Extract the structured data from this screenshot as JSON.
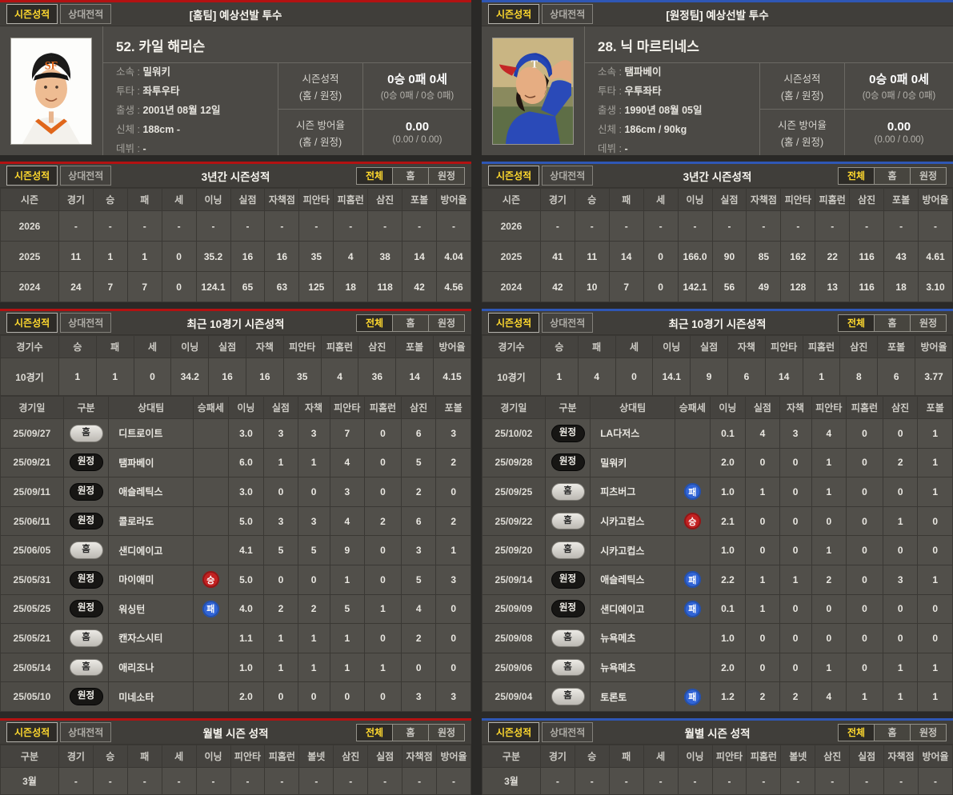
{
  "colors": {
    "home_accent": "#b31212",
    "away_accent": "#2f57b5",
    "active_text": "#ffd92e",
    "win_badge": "#c32222",
    "loss_badge": "#3265d6"
  },
  "panels": [
    {
      "tabs": [
        "시즌성적",
        "상대전적"
      ],
      "filters": [
        "전체",
        "홈",
        "원정"
      ],
      "profile": {
        "title": "[홈팀] 예상선발 투수",
        "name": "52. 카일 해리슨",
        "info": [
          {
            "label": "소속",
            "value": "밀워키"
          },
          {
            "label": "투타",
            "value": "좌투우타"
          },
          {
            "label": "출생",
            "value": "2001년 08월 12일"
          },
          {
            "label": "신체",
            "value": "188cm -"
          },
          {
            "label": "데뷔",
            "value": "-"
          }
        ],
        "records": [
          {
            "label": "시즌성적",
            "sublabel": "(홈 / 원정)",
            "value": "0승 0패 0세",
            "subvalue": "(0승 0패 / 0승 0패)"
          },
          {
            "label": "시즌 방어율",
            "sublabel": "(홈 / 원정)",
            "value": "0.00",
            "subvalue": "(0.00 / 0.00)"
          }
        ]
      },
      "three_year": {
        "title": "3년간 시즌성적",
        "columns": [
          "시즌",
          "경기",
          "승",
          "패",
          "세",
          "이닝",
          "실점",
          "자책점",
          "피안타",
          "피홈런",
          "삼진",
          "포볼",
          "방어율"
        ],
        "rows": [
          [
            "2026",
            "-",
            "-",
            "-",
            "-",
            "-",
            "-",
            "-",
            "-",
            "-",
            "-",
            "-",
            "-"
          ],
          [
            "2025",
            "11",
            "1",
            "1",
            "0",
            "35.2",
            "16",
            "16",
            "35",
            "4",
            "38",
            "14",
            "4.04"
          ],
          [
            "2024",
            "24",
            "7",
            "7",
            "0",
            "124.1",
            "65",
            "63",
            "125",
            "18",
            "118",
            "42",
            "4.56"
          ]
        ]
      },
      "recent": {
        "title": "최근 10경기 시즌성적",
        "summary": {
          "columns": [
            "경기수",
            "승",
            "패",
            "세",
            "이닝",
            "실점",
            "자책",
            "피안타",
            "피홈런",
            "삼진",
            "포볼",
            "방어율"
          ],
          "rows": [
            [
              "10경기",
              "1",
              "1",
              "0",
              "34.2",
              "16",
              "16",
              "35",
              "4",
              "36",
              "14",
              "4.15"
            ]
          ]
        },
        "games": {
          "columns": [
            "경기일",
            "구분",
            "상대팀",
            "승패세",
            "이닝",
            "실점",
            "자책",
            "피안타",
            "피홈런",
            "삼진",
            "포볼"
          ],
          "rows": [
            [
              "25/09/27",
              {
                "pill": "홈",
                "kind": "home"
              },
              "디트로이트",
              "",
              "3.0",
              "3",
              "3",
              "7",
              "0",
              "6",
              "3"
            ],
            [
              "25/09/21",
              {
                "pill": "원정",
                "kind": "away"
              },
              "탬파베이",
              "",
              "6.0",
              "1",
              "1",
              "4",
              "0",
              "5",
              "2"
            ],
            [
              "25/09/11",
              {
                "pill": "원정",
                "kind": "away"
              },
              "애슬레틱스",
              "",
              "3.0",
              "0",
              "0",
              "3",
              "0",
              "2",
              "0"
            ],
            [
              "25/06/11",
              {
                "pill": "원정",
                "kind": "away"
              },
              "콜로라도",
              "",
              "5.0",
              "3",
              "3",
              "4",
              "2",
              "6",
              "2"
            ],
            [
              "25/06/05",
              {
                "pill": "홈",
                "kind": "home"
              },
              "샌디에이고",
              "",
              "4.1",
              "5",
              "5",
              "9",
              "0",
              "3",
              "1"
            ],
            [
              "25/05/31",
              {
                "pill": "원정",
                "kind": "away"
              },
              "마이애미",
              {
                "circle": "승",
                "kind": "win"
              },
              "5.0",
              "0",
              "0",
              "1",
              "0",
              "5",
              "3"
            ],
            [
              "25/05/25",
              {
                "pill": "원정",
                "kind": "away"
              },
              "워싱턴",
              {
                "circle": "패",
                "kind": "loss"
              },
              "4.0",
              "2",
              "2",
              "5",
              "1",
              "4",
              "0"
            ],
            [
              "25/05/21",
              {
                "pill": "홈",
                "kind": "home"
              },
              "캔자스시티",
              "",
              "1.1",
              "1",
              "1",
              "1",
              "0",
              "2",
              "0"
            ],
            [
              "25/05/14",
              {
                "pill": "홈",
                "kind": "home"
              },
              "애리조나",
              "",
              "1.0",
              "1",
              "1",
              "1",
              "1",
              "0",
              "0"
            ],
            [
              "25/05/10",
              {
                "pill": "원정",
                "kind": "away"
              },
              "미네소타",
              "",
              "2.0",
              "0",
              "0",
              "0",
              "0",
              "3",
              "3"
            ]
          ]
        }
      },
      "monthly": {
        "title": "월별 시즌 성적",
        "columns": [
          "구분",
          "경기",
          "승",
          "패",
          "세",
          "이닝",
          "피안타",
          "피홈런",
          "볼넷",
          "삼진",
          "실점",
          "자책점",
          "방어율"
        ],
        "rows": [
          [
            "3월",
            "-",
            "-",
            "-",
            "-",
            "-",
            "-",
            "-",
            "-",
            "-",
            "-",
            "-",
            "-"
          ]
        ]
      }
    },
    {
      "tabs": [
        "시즌성적",
        "상대전적"
      ],
      "filters": [
        "전체",
        "홈",
        "원정"
      ],
      "profile": {
        "title": "[원정팀] 예상선발 투수",
        "name": "28. 닉 마르티네스",
        "info": [
          {
            "label": "소속",
            "value": "탬파베이"
          },
          {
            "label": "투타",
            "value": "우투좌타"
          },
          {
            "label": "출생",
            "value": "1990년 08월 05일"
          },
          {
            "label": "신체",
            "value": "186cm / 90kg"
          },
          {
            "label": "데뷔",
            "value": "-"
          }
        ],
        "records": [
          {
            "label": "시즌성적",
            "sublabel": "(홈 / 원정)",
            "value": "0승 0패 0세",
            "subvalue": "(0승 0패 / 0승 0패)"
          },
          {
            "label": "시즌 방어율",
            "sublabel": "(홈 / 원정)",
            "value": "0.00",
            "subvalue": "(0.00 / 0.00)"
          }
        ]
      },
      "three_year": {
        "title": "3년간 시즌성적",
        "columns": [
          "시즌",
          "경기",
          "승",
          "패",
          "세",
          "이닝",
          "실점",
          "자책점",
          "피안타",
          "피홈런",
          "삼진",
          "포볼",
          "방어율"
        ],
        "rows": [
          [
            "2026",
            "-",
            "-",
            "-",
            "-",
            "-",
            "-",
            "-",
            "-",
            "-",
            "-",
            "-",
            "-"
          ],
          [
            "2025",
            "41",
            "11",
            "14",
            "0",
            "166.0",
            "90",
            "85",
            "162",
            "22",
            "116",
            "43",
            "4.61"
          ],
          [
            "2024",
            "42",
            "10",
            "7",
            "0",
            "142.1",
            "56",
            "49",
            "128",
            "13",
            "116",
            "18",
            "3.10"
          ]
        ]
      },
      "recent": {
        "title": "최근 10경기 시즌성적",
        "summary": {
          "columns": [
            "경기수",
            "승",
            "패",
            "세",
            "이닝",
            "실점",
            "자책",
            "피안타",
            "피홈런",
            "삼진",
            "포볼",
            "방어율"
          ],
          "rows": [
            [
              "10경기",
              "1",
              "4",
              "0",
              "14.1",
              "9",
              "6",
              "14",
              "1",
              "8",
              "6",
              "3.77"
            ]
          ]
        },
        "games": {
          "columns": [
            "경기일",
            "구분",
            "상대팀",
            "승패세",
            "이닝",
            "실점",
            "자책",
            "피안타",
            "피홈런",
            "삼진",
            "포볼"
          ],
          "rows": [
            [
              "25/10/02",
              {
                "pill": "원정",
                "kind": "away"
              },
              "LA다저스",
              "",
              "0.1",
              "4",
              "3",
              "4",
              "0",
              "0",
              "1"
            ],
            [
              "25/09/28",
              {
                "pill": "원정",
                "kind": "away"
              },
              "밀워키",
              "",
              "2.0",
              "0",
              "0",
              "1",
              "0",
              "2",
              "1"
            ],
            [
              "25/09/25",
              {
                "pill": "홈",
                "kind": "home"
              },
              "피츠버그",
              {
                "circle": "패",
                "kind": "loss"
              },
              "1.0",
              "1",
              "0",
              "1",
              "0",
              "0",
              "1"
            ],
            [
              "25/09/22",
              {
                "pill": "홈",
                "kind": "home"
              },
              "시카고컵스",
              {
                "circle": "승",
                "kind": "win"
              },
              "2.1",
              "0",
              "0",
              "0",
              "0",
              "1",
              "0"
            ],
            [
              "25/09/20",
              {
                "pill": "홈",
                "kind": "home"
              },
              "시카고컵스",
              "",
              "1.0",
              "0",
              "0",
              "1",
              "0",
              "0",
              "0"
            ],
            [
              "25/09/14",
              {
                "pill": "원정",
                "kind": "away"
              },
              "애슬레틱스",
              {
                "circle": "패",
                "kind": "loss"
              },
              "2.2",
              "1",
              "1",
              "2",
              "0",
              "3",
              "1"
            ],
            [
              "25/09/09",
              {
                "pill": "원정",
                "kind": "away"
              },
              "샌디에이고",
              {
                "circle": "패",
                "kind": "loss"
              },
              "0.1",
              "1",
              "0",
              "0",
              "0",
              "0",
              "0"
            ],
            [
              "25/09/08",
              {
                "pill": "홈",
                "kind": "home"
              },
              "뉴욕메츠",
              "",
              "1.0",
              "0",
              "0",
              "0",
              "0",
              "0",
              "0"
            ],
            [
              "25/09/06",
              {
                "pill": "홈",
                "kind": "home"
              },
              "뉴욕메츠",
              "",
              "2.0",
              "0",
              "0",
              "1",
              "0",
              "1",
              "1"
            ],
            [
              "25/09/04",
              {
                "pill": "홈",
                "kind": "home"
              },
              "토론토",
              {
                "circle": "패",
                "kind": "loss"
              },
              "1.2",
              "2",
              "2",
              "4",
              "1",
              "1",
              "1"
            ]
          ]
        }
      },
      "monthly": {
        "title": "월별 시즌 성적",
        "columns": [
          "구분",
          "경기",
          "승",
          "패",
          "세",
          "이닝",
          "피안타",
          "피홈런",
          "볼넷",
          "삼진",
          "실점",
          "자책점",
          "방어율"
        ],
        "rows": [
          [
            "3월",
            "-",
            "-",
            "-",
            "-",
            "-",
            "-",
            "-",
            "-",
            "-",
            "-",
            "-",
            "-"
          ]
        ]
      }
    }
  ]
}
